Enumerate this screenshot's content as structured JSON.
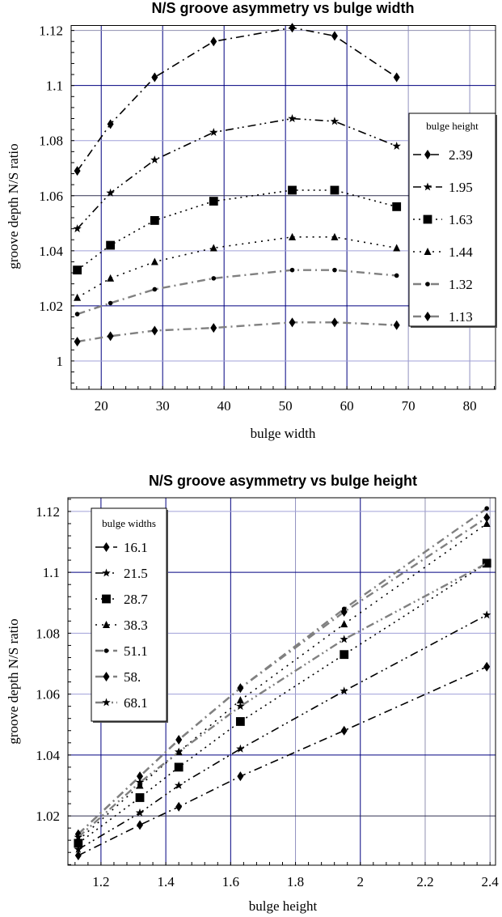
{
  "chart_data": [
    {
      "type": "line",
      "title": "N/S groove  asymmetry  vs  bulge width",
      "xlabel": "bulge width",
      "ylabel": "groove depth N/S ratio",
      "xlim": [
        15.1,
        84.2
      ],
      "ylim": [
        0.9897,
        1.1218
      ],
      "xticks": [
        20,
        30,
        40,
        50,
        60,
        70,
        80
      ],
      "yticks": [
        1,
        1.02,
        1.04,
        1.06,
        1.08,
        1.1,
        1.12
      ],
      "ytick_labels": [
        "1",
        "1.02",
        "1.04",
        "1.06",
        "1.08",
        "1.1",
        "1.12"
      ],
      "grid": true,
      "legend_title": "bulge height",
      "legend_position": "right",
      "x": [
        16.1,
        21.5,
        28.7,
        38.3,
        51.1,
        58,
        68.1
      ],
      "series": [
        {
          "name": "2.39",
          "marker": "diamond",
          "color": "#000000",
          "values": [
            1.069,
            1.086,
            1.103,
            1.116,
            1.121,
            1.118,
            1.103
          ]
        },
        {
          "name": "1.95",
          "marker": "star",
          "color": "#000000",
          "values": [
            1.048,
            1.061,
            1.073,
            1.083,
            1.088,
            1.087,
            1.078
          ]
        },
        {
          "name": "1.63",
          "marker": "square",
          "color": "#000000",
          "values": [
            1.033,
            1.042,
            1.051,
            1.058,
            1.062,
            1.062,
            1.056
          ]
        },
        {
          "name": "1.44",
          "marker": "triangle",
          "color": "#000000",
          "values": [
            1.023,
            1.03,
            1.036,
            1.041,
            1.045,
            1.045,
            1.041
          ]
        },
        {
          "name": "1.32",
          "marker": "dot",
          "color": "#808080",
          "values": [
            1.017,
            1.021,
            1.026,
            1.03,
            1.033,
            1.033,
            1.031
          ]
        },
        {
          "name": "1.13",
          "marker": "diamond",
          "color": "#808080",
          "values": [
            1.007,
            1.009,
            1.011,
            1.012,
            1.014,
            1.014,
            1.013
          ]
        }
      ]
    },
    {
      "type": "line",
      "title": "N/S groove asymmetry vs  bulge height",
      "xlabel": "bulge height",
      "ylabel": "groove depth N/S ratio",
      "xlim": [
        1.098,
        2.417
      ],
      "ylim": [
        1.0038,
        1.1245
      ],
      "xticks": [
        1.2,
        1.4,
        1.6,
        1.8,
        2,
        2.2,
        2.4
      ],
      "yticks": [
        1.02,
        1.04,
        1.06,
        1.08,
        1.1,
        1.12
      ],
      "ytick_labels": [
        "1.02",
        "1.04",
        "1.06",
        "1.08",
        "1.1",
        "1.12"
      ],
      "grid": true,
      "legend_title": "bulge widths",
      "legend_position": "top-left",
      "x": [
        1.13,
        1.32,
        1.44,
        1.63,
        1.95,
        2.39
      ],
      "series": [
        {
          "name": "16.1",
          "marker": "diamond",
          "color": "#000000",
          "values": [
            1.007,
            1.017,
            1.023,
            1.033,
            1.048,
            1.069
          ]
        },
        {
          "name": "21.5",
          "marker": "star",
          "color": "#000000",
          "values": [
            1.009,
            1.021,
            1.03,
            1.042,
            1.061,
            1.086
          ]
        },
        {
          "name": "28.7",
          "marker": "square",
          "color": "#000000",
          "values": [
            1.011,
            1.026,
            1.036,
            1.051,
            1.073,
            1.103
          ]
        },
        {
          "name": "38.3",
          "marker": "triangle",
          "color": "#000000",
          "values": [
            1.012,
            1.03,
            1.041,
            1.058,
            1.083,
            1.116
          ]
        },
        {
          "name": "51.1",
          "marker": "dot",
          "color": "#808080",
          "values": [
            1.014,
            1.033,
            1.045,
            1.062,
            1.088,
            1.121
          ]
        },
        {
          "name": "58.",
          "marker": "diamond",
          "color": "#808080",
          "values": [
            1.014,
            1.033,
            1.045,
            1.062,
            1.087,
            1.118
          ]
        },
        {
          "name": "68.1",
          "marker": "star",
          "color": "#808080",
          "values": [
            1.013,
            1.031,
            1.041,
            1.056,
            1.078,
            1.103
          ]
        }
      ]
    }
  ]
}
